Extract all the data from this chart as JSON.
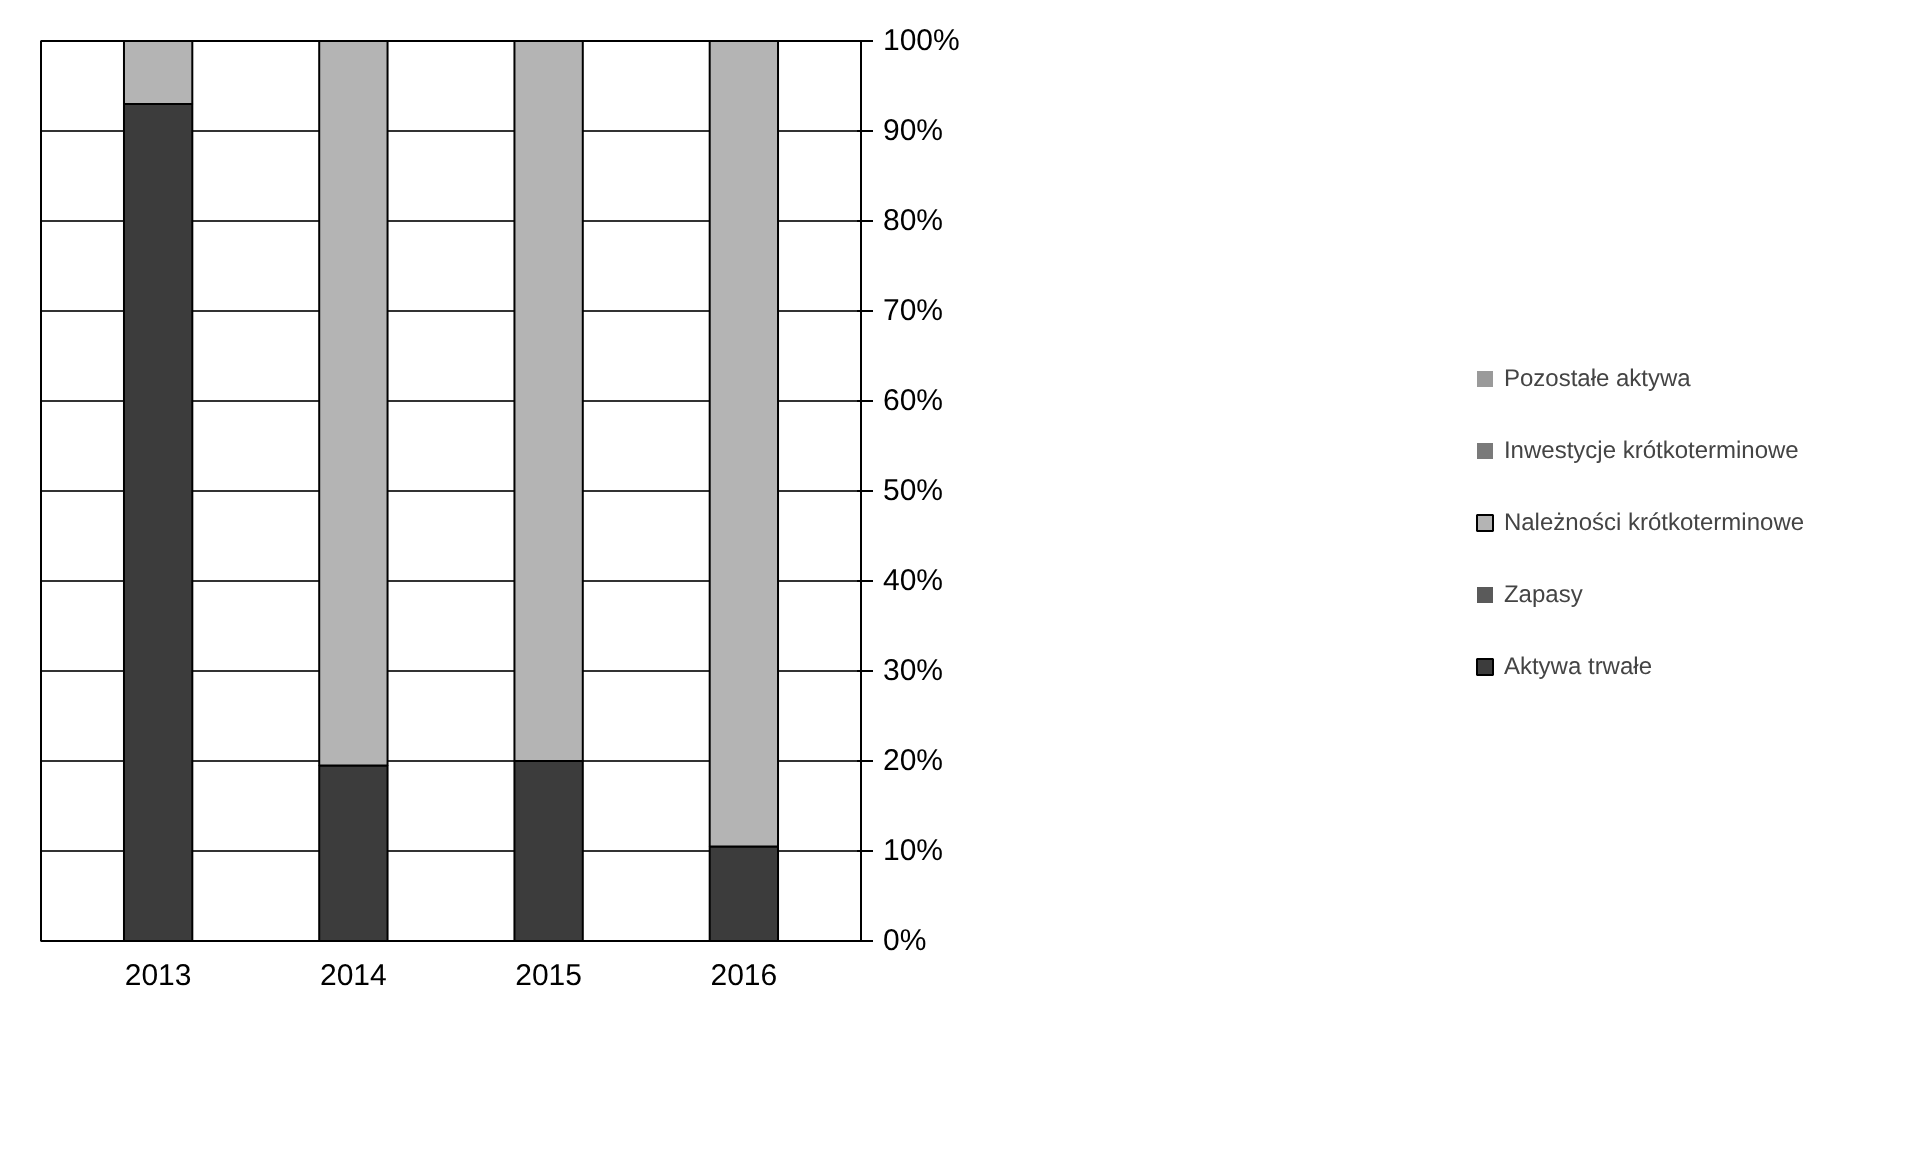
{
  "chart_data": {
    "type": "bar",
    "stacked": true,
    "categories": [
      "2013",
      "2014",
      "2015",
      "2016"
    ],
    "series": [
      {
        "name": "Aktywa trwałe",
        "color": "#3c3c3c",
        "values": [
          93,
          19.5,
          20,
          10.5
        ]
      },
      {
        "name": "Zapasy",
        "color": "#5a5a5a",
        "values": [
          0,
          0,
          0,
          0
        ]
      },
      {
        "name": "Należności krótkoterminowe",
        "color": "#b4b4b4",
        "values": [
          7,
          80.5,
          80,
          89.5
        ]
      },
      {
        "name": "Inwestycje krótkoterminowe",
        "color": "#7a7a7a",
        "values": [
          0,
          0,
          0,
          0
        ]
      },
      {
        "name": "Pozostałe aktywa",
        "color": "#9a9a9a",
        "values": [
          0,
          0,
          0,
          0
        ]
      }
    ],
    "ylim": [
      0,
      100
    ],
    "yticks": [
      {
        "value": 0,
        "label": "0%"
      },
      {
        "value": 10,
        "label": "10%"
      },
      {
        "value": 20,
        "label": "20%"
      },
      {
        "value": 30,
        "label": "30%"
      },
      {
        "value": 40,
        "label": "40%"
      },
      {
        "value": 50,
        "label": "50%"
      },
      {
        "value": 60,
        "label": "60%"
      },
      {
        "value": 70,
        "label": "70%"
      },
      {
        "value": 80,
        "label": "80%"
      },
      {
        "value": 90,
        "label": "90%"
      },
      {
        "value": 100,
        "label": "100%"
      }
    ],
    "grid": "y",
    "legend": "right"
  }
}
